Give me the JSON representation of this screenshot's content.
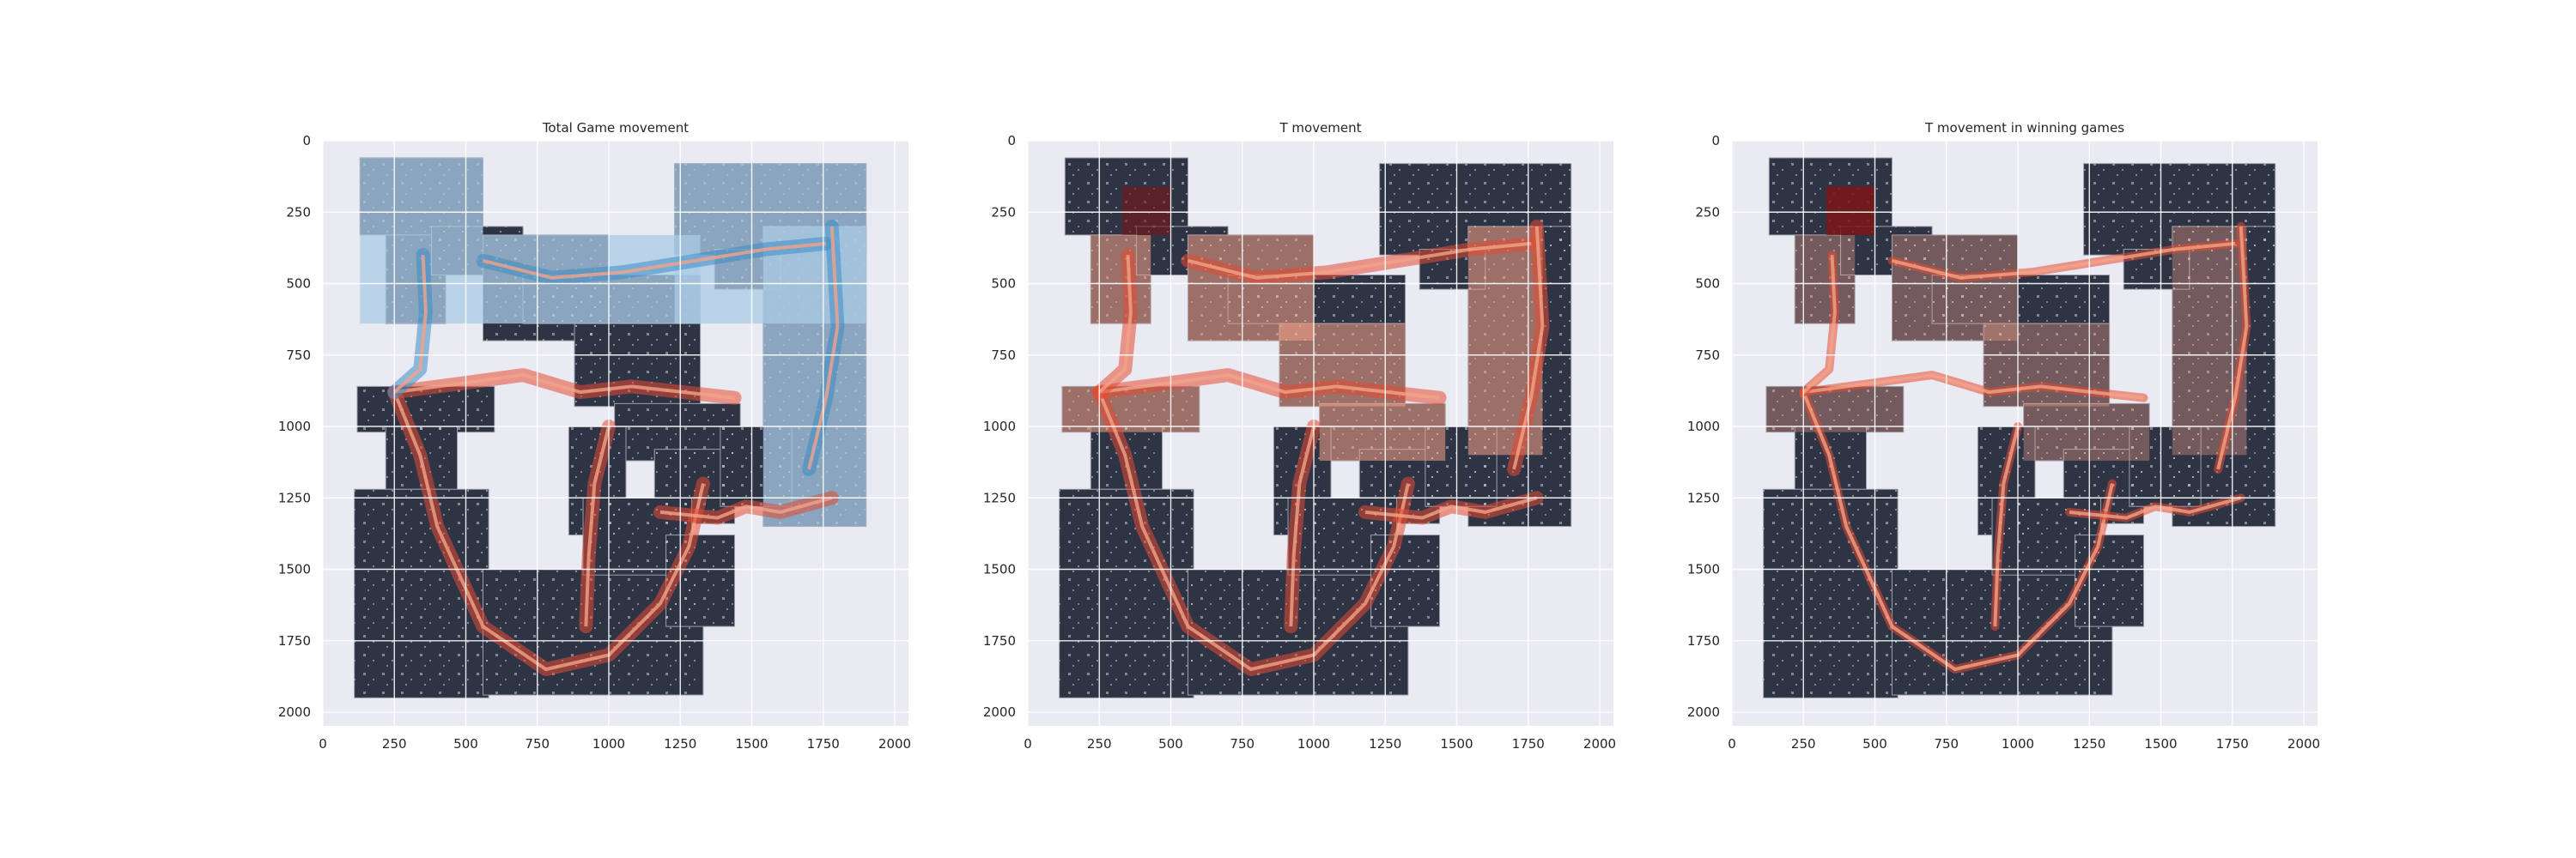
{
  "colors": {
    "axes_bg": "#EAEAF2",
    "grid": "#FFFFFF",
    "map_fill": "#2F3445",
    "map_edge": "#9BA0AC",
    "blue_heat": "#3C8DC9",
    "blue_light": "#A9CBE6",
    "red_heat": "#E34A33",
    "red_light": "#F4A386",
    "red_dark": "#7A1616",
    "text": "#262626"
  },
  "chart_data": [
    {
      "type": "heatmap",
      "title": "Total Game movement",
      "xlabel": "",
      "ylabel": "",
      "xlim": [
        0,
        2048
      ],
      "ylim": [
        2048,
        0
      ],
      "xticks": [
        0,
        250,
        500,
        750,
        1000,
        1250,
        1500,
        1750,
        2000
      ],
      "yticks": [
        0,
        250,
        500,
        750,
        1000,
        1250,
        1500,
        1750,
        2000
      ],
      "grid": true,
      "heat_scheme": "blue-top/red-bottom"
    },
    {
      "type": "heatmap",
      "title": "T movement",
      "xlabel": "",
      "ylabel": "",
      "xlim": [
        0,
        2048
      ],
      "ylim": [
        2048,
        0
      ],
      "xticks": [
        0,
        250,
        500,
        750,
        1000,
        1250,
        1500,
        1750,
        2000
      ],
      "yticks": [
        0,
        250,
        500,
        750,
        1000,
        1250,
        1500,
        1750,
        2000
      ],
      "grid": true,
      "heat_scheme": "red"
    },
    {
      "type": "heatmap",
      "title": "T movement in winning games",
      "xlabel": "",
      "ylabel": "",
      "xlim": [
        0,
        2048
      ],
      "ylim": [
        2048,
        0
      ],
      "xticks": [
        0,
        250,
        500,
        750,
        1000,
        1250,
        1500,
        1750,
        2000
      ],
      "yticks": [
        0,
        250,
        500,
        750,
        1000,
        1250,
        1500,
        1750,
        2000
      ],
      "grid": true,
      "heat_scheme": "red-sparse"
    }
  ]
}
